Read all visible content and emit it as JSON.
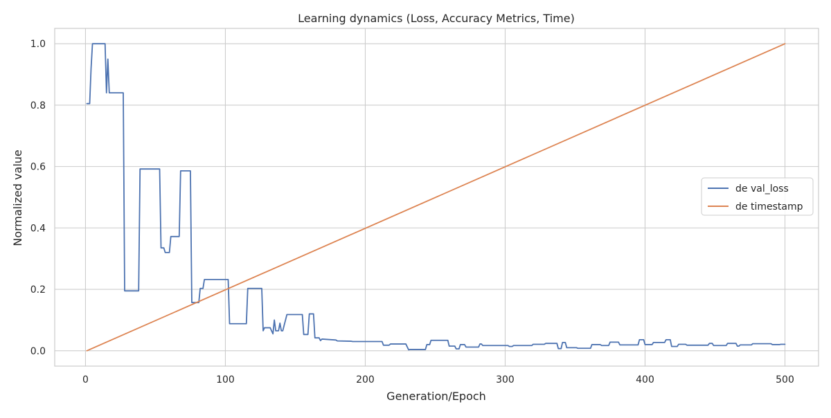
{
  "chart_data": {
    "type": "line",
    "title": "Learning dynamics (Loss, Accuracy Metrics, Time)",
    "xlabel": "Generation/Epoch",
    "ylabel": "Normalized value",
    "xlim": [
      -22,
      524
    ],
    "ylim": [
      -0.05,
      1.05
    ],
    "xticks": [
      0,
      100,
      200,
      300,
      400,
      500
    ],
    "yticks": [
      0.0,
      0.2,
      0.4,
      0.6,
      0.8,
      1.0
    ],
    "xtick_labels": [
      "0",
      "100",
      "200",
      "300",
      "400",
      "500"
    ],
    "ytick_labels": [
      "0.0",
      "0.2",
      "0.4",
      "0.6",
      "0.8",
      "1.0"
    ],
    "grid": true,
    "legend_position": "center-right",
    "series": [
      {
        "name": "de val_loss",
        "color": "#4c72b0",
        "points": [
          [
            1,
            0.805
          ],
          [
            3,
            0.805
          ],
          [
            4,
            0.92
          ],
          [
            5,
            1.0
          ],
          [
            14,
            1.0
          ],
          [
            15,
            0.84
          ],
          [
            16,
            0.95
          ],
          [
            17,
            0.84
          ],
          [
            27,
            0.84
          ],
          [
            28,
            0.195
          ],
          [
            38,
            0.195
          ],
          [
            39,
            0.592
          ],
          [
            53,
            0.592
          ],
          [
            54,
            0.335
          ],
          [
            56,
            0.335
          ],
          [
            57,
            0.32
          ],
          [
            60,
            0.32
          ],
          [
            61,
            0.372
          ],
          [
            67,
            0.372
          ],
          [
            68,
            0.586
          ],
          [
            75,
            0.586
          ],
          [
            76,
            0.157
          ],
          [
            81,
            0.157
          ],
          [
            82,
            0.203
          ],
          [
            84,
            0.203
          ],
          [
            85,
            0.232
          ],
          [
            102,
            0.232
          ],
          [
            103,
            0.088
          ],
          [
            115,
            0.088
          ],
          [
            116,
            0.203
          ],
          [
            126,
            0.203
          ],
          [
            127,
            0.065
          ],
          [
            128,
            0.075
          ],
          [
            132,
            0.075
          ],
          [
            134,
            0.055
          ],
          [
            135,
            0.1
          ],
          [
            136,
            0.065
          ],
          [
            138,
            0.065
          ],
          [
            139,
            0.09
          ],
          [
            140,
            0.065
          ],
          [
            141,
            0.065
          ],
          [
            144,
            0.118
          ],
          [
            155,
            0.118
          ],
          [
            156,
            0.053
          ],
          [
            159,
            0.053
          ],
          [
            160,
            0.12
          ],
          [
            163,
            0.12
          ],
          [
            164,
            0.042
          ],
          [
            167,
            0.042
          ],
          [
            168,
            0.033
          ],
          [
            169,
            0.038
          ],
          [
            179,
            0.035
          ],
          [
            180,
            0.032
          ],
          [
            190,
            0.031
          ],
          [
            191,
            0.03
          ],
          [
            212,
            0.03
          ],
          [
            213,
            0.018
          ],
          [
            217,
            0.018
          ],
          [
            218,
            0.022
          ],
          [
            229,
            0.022
          ],
          [
            231,
            0.003
          ],
          [
            232,
            0.004
          ],
          [
            243,
            0.004
          ],
          [
            244,
            0.02
          ],
          [
            246,
            0.02
          ],
          [
            247,
            0.034
          ],
          [
            259,
            0.034
          ],
          [
            260,
            0.015
          ],
          [
            264,
            0.015
          ],
          [
            265,
            0.006
          ],
          [
            267,
            0.006
          ],
          [
            268,
            0.02
          ],
          [
            271,
            0.02
          ],
          [
            272,
            0.012
          ],
          [
            281,
            0.012
          ],
          [
            282,
            0.022
          ],
          [
            283,
            0.022
          ],
          [
            284,
            0.017
          ],
          [
            302,
            0.017
          ],
          [
            303,
            0.014
          ],
          [
            305,
            0.014
          ],
          [
            306,
            0.017
          ],
          [
            319,
            0.017
          ],
          [
            320,
            0.021
          ],
          [
            328,
            0.021
          ],
          [
            329,
            0.024
          ],
          [
            337,
            0.024
          ],
          [
            338,
            0.007
          ],
          [
            340,
            0.007
          ],
          [
            341,
            0.027
          ],
          [
            343,
            0.027
          ],
          [
            344,
            0.01
          ],
          [
            351,
            0.01
          ],
          [
            352,
            0.008
          ],
          [
            361,
            0.008
          ],
          [
            362,
            0.02
          ],
          [
            368,
            0.02
          ],
          [
            369,
            0.017
          ],
          [
            374,
            0.017
          ],
          [
            375,
            0.028
          ],
          [
            381,
            0.028
          ],
          [
            382,
            0.019
          ],
          [
            395,
            0.019
          ],
          [
            396,
            0.036
          ],
          [
            399,
            0.036
          ],
          [
            400,
            0.02
          ],
          [
            405,
            0.02
          ],
          [
            406,
            0.027
          ],
          [
            414,
            0.027
          ],
          [
            415,
            0.036
          ],
          [
            418,
            0.036
          ],
          [
            419,
            0.014
          ],
          [
            423,
            0.014
          ],
          [
            424,
            0.021
          ],
          [
            429,
            0.021
          ],
          [
            430,
            0.018
          ],
          [
            445,
            0.018
          ],
          [
            446,
            0.024
          ],
          [
            448,
            0.024
          ],
          [
            449,
            0.017
          ],
          [
            458,
            0.017
          ],
          [
            459,
            0.024
          ],
          [
            465,
            0.024
          ],
          [
            466,
            0.015
          ],
          [
            467,
            0.015
          ],
          [
            468,
            0.019
          ],
          [
            476,
            0.019
          ],
          [
            477,
            0.023
          ],
          [
            490,
            0.023
          ],
          [
            491,
            0.02
          ],
          [
            496,
            0.02
          ],
          [
            497,
            0.021
          ],
          [
            500,
            0.021
          ]
        ]
      },
      {
        "name": "de timestamp",
        "color": "#dd8452",
        "points": [
          [
            1,
            0.0
          ],
          [
            500,
            1.0
          ]
        ]
      }
    ]
  }
}
